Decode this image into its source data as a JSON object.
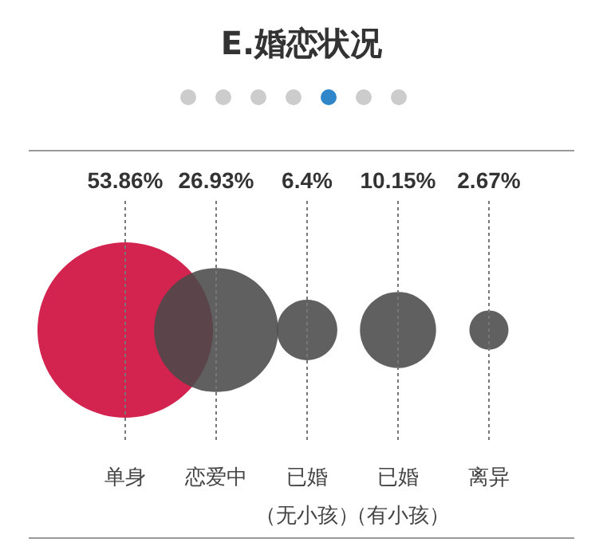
{
  "chart_data": {
    "type": "other",
    "title": "E.婚恋状况",
    "categories": [
      "单身",
      "恋爱中",
      "已婚（无小孩）",
      "已婚（有小孩）",
      "离异"
    ],
    "values": [
      53.86,
      26.93,
      6.4,
      10.15,
      2.67
    ],
    "value_labels": [
      "53.86%",
      "26.93%",
      "6.4%",
      "10.15%",
      "2.67%"
    ],
    "colors": [
      "#d3234f",
      "#4a4a4a",
      "#4a4a4a",
      "#4a4a4a",
      "#4a4a4a"
    ]
  }
}
